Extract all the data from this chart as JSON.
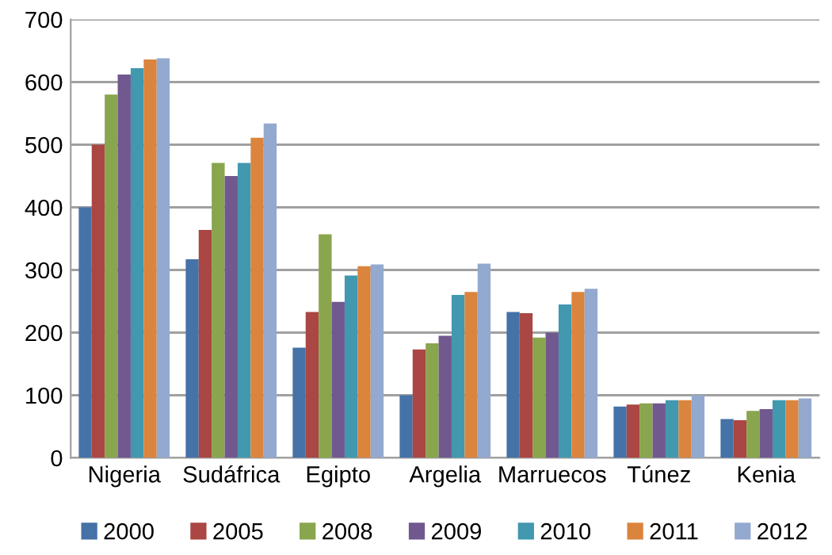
{
  "chart_data": {
    "type": "bar",
    "categories": [
      "Nigeria",
      "Sudáfrica",
      "Egipto",
      "Argelia",
      "Marruecos",
      "Túnez",
      "Kenia"
    ],
    "series": [
      {
        "name": "2000",
        "color": "#4572a7",
        "values": [
          400,
          317,
          176,
          100,
          233,
          82,
          62
        ]
      },
      {
        "name": "2005",
        "color": "#aa4643",
        "values": [
          500,
          364,
          233,
          173,
          231,
          85,
          60
        ]
      },
      {
        "name": "2008",
        "color": "#89a54e",
        "values": [
          580,
          471,
          357,
          183,
          192,
          87,
          75
        ]
      },
      {
        "name": "2009",
        "color": "#71588f",
        "values": [
          612,
          450,
          249,
          195,
          200,
          87,
          78
        ]
      },
      {
        "name": "2010",
        "color": "#4198af",
        "values": [
          622,
          471,
          291,
          260,
          245,
          92,
          92
        ]
      },
      {
        "name": "2011",
        "color": "#db843d",
        "values": [
          636,
          511,
          306,
          265,
          265,
          92,
          92
        ]
      },
      {
        "name": "2012",
        "color": "#93a9cf",
        "values": [
          638,
          534,
          309,
          310,
          270,
          100,
          95
        ]
      }
    ],
    "ylim": [
      0,
      700
    ],
    "yticks": [
      0,
      100,
      200,
      300,
      400,
      500,
      600,
      700
    ],
    "grid": "y",
    "legend": "bottom"
  }
}
